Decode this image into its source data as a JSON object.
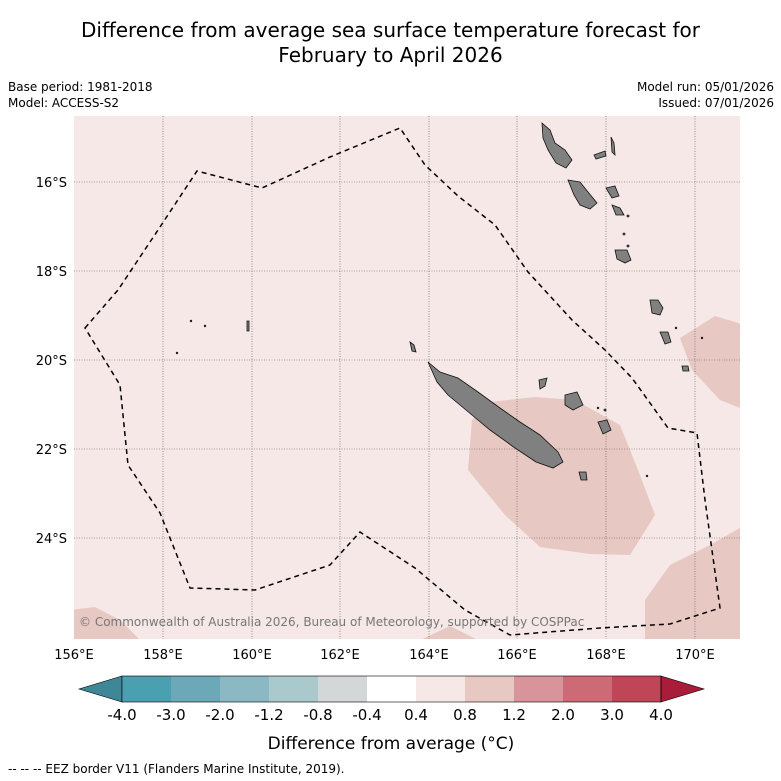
{
  "title_line1": "Difference from average sea surface temperature forecast for",
  "title_line2": "February to April 2026",
  "meta": {
    "base_period": "Base period: 1981-2018",
    "model": "Model: ACCESS-S2",
    "model_run": "Model run: 05/01/2026",
    "issued": "Issued: 07/01/2026"
  },
  "map": {
    "copyright": "© Commonwealth of Australia 2026, Bureau of Meteorology, supported by COSPPac",
    "lon_labels": [
      "156°E",
      "158°E",
      "160°E",
      "162°E",
      "164°E",
      "166°E",
      "168°E",
      "170°E"
    ],
    "lat_labels": [
      "16°S",
      "18°S",
      "20°S",
      "22°S",
      "24°S"
    ],
    "lon_range": [
      156,
      171
    ],
    "lat_range": [
      -26.2,
      -14.4
    ]
  },
  "colorbar": {
    "ticks": [
      "-4.0",
      "-3.0",
      "-2.0",
      "-1.2",
      "-0.8",
      "-0.4",
      "0.4",
      "0.8",
      "1.2",
      "2.0",
      "3.0",
      "4.0"
    ],
    "colors": [
      "#4a9fb0",
      "#6ba9b8",
      "#8bb8c2",
      "#a9c9cc",
      "#d3d7d7",
      "#ffffff",
      "#f5e8e6",
      "#e8c8c2",
      "#d9939a",
      "#cc6a75",
      "#bf4656"
    ],
    "extend_low_color": "#3f8796",
    "extend_high_color": "#a91d3a",
    "label": "Difference from average (°C)"
  },
  "footer": "--  --  -- EEZ border V11 (Flanders Marine Institute, 2019)."
}
